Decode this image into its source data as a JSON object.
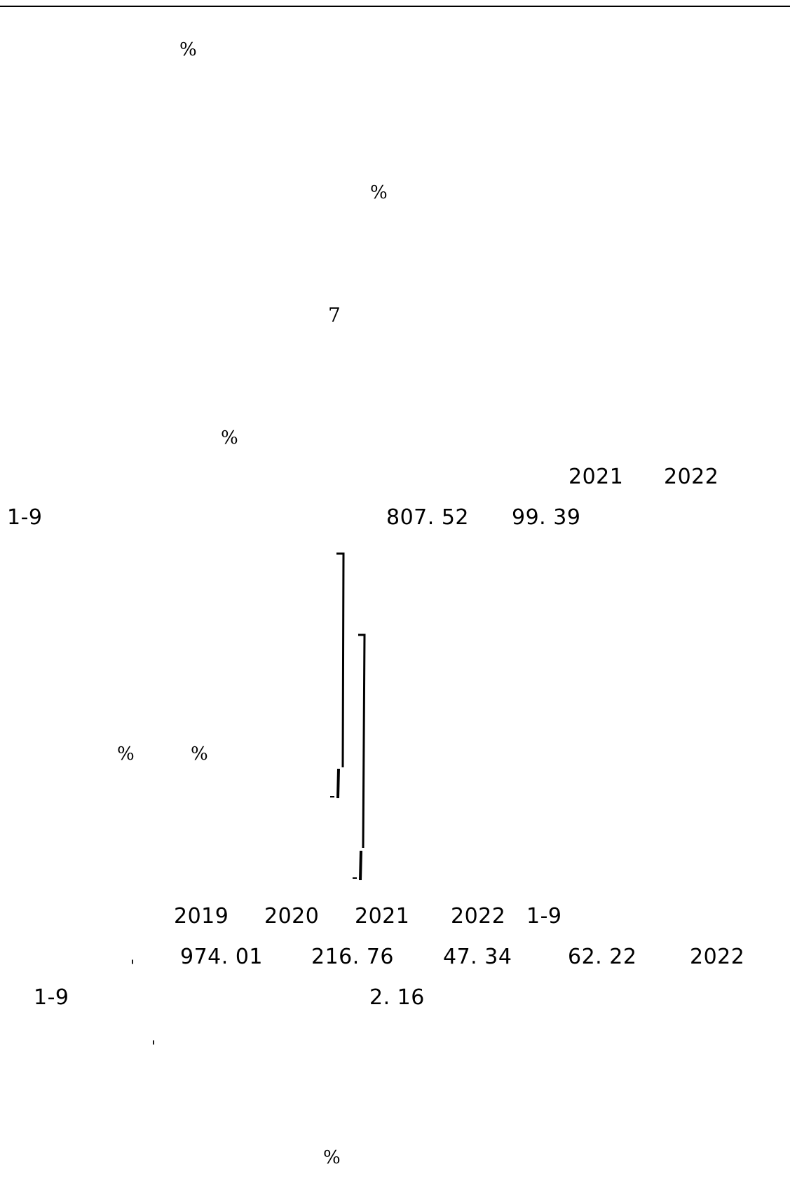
{
  "document": {
    "header_rule": true,
    "percent_signs": [
      "%",
      "%",
      "%",
      "%",
      "%",
      "%"
    ],
    "isolated_numbers": {
      "seven": "7"
    },
    "line_a": {
      "year_2021": "2021",
      "year_2022": "2022"
    },
    "line_b": {
      "period": "1-9",
      "value_1": "807. 52",
      "value_2": "99. 39"
    },
    "line_c": {
      "year_2019": "2019",
      "year_2020": "2020",
      "year_2021": "2021",
      "year_2022": "2022",
      "period": "1-9"
    },
    "line_d": {
      "mark": "'",
      "value_1": "974. 01",
      "value_2": "216. 76",
      "value_3": "47. 34",
      "value_4": "62. 22",
      "year": "2022"
    },
    "line_e": {
      "period": "1-9",
      "value": "2. 16"
    },
    "line_f": {
      "mark": "'"
    }
  }
}
